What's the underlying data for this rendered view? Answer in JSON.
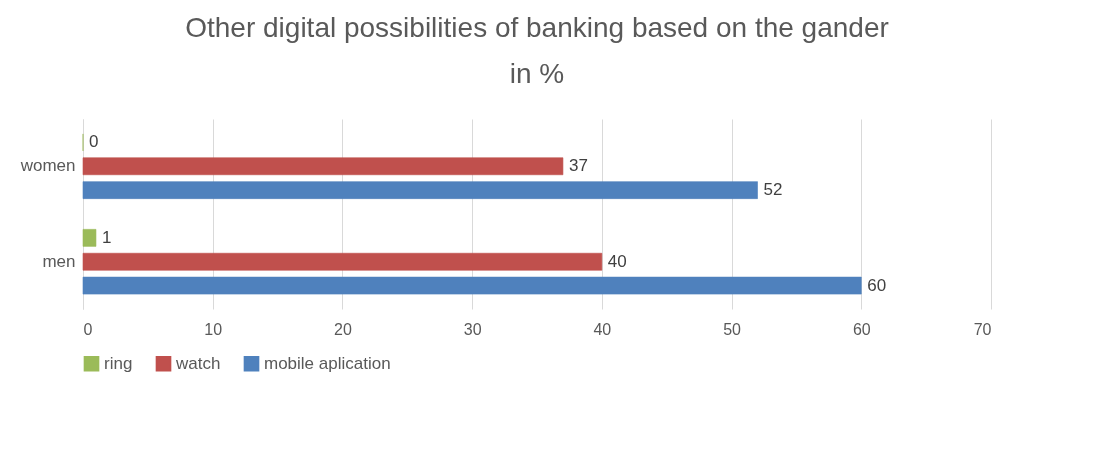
{
  "chart_data": {
    "type": "bar",
    "orientation": "horizontal",
    "title": "Other digital possibilities of banking based on the gander in %",
    "categories": [
      "women",
      "men"
    ],
    "series": [
      {
        "name": "ring",
        "color": "#9bbb59",
        "values": [
          0,
          1
        ]
      },
      {
        "name": "watch",
        "color": "#c0504d",
        "values": [
          37,
          40
        ]
      },
      {
        "name": "mobile aplication",
        "color": "#4f81bd",
        "values": [
          52,
          60
        ]
      }
    ],
    "xlim": [
      0,
      70
    ],
    "xticks": [
      0,
      10,
      20,
      30,
      40,
      50,
      60,
      70
    ],
    "grid": "x",
    "legend": "bottom",
    "data_labels": true
  }
}
